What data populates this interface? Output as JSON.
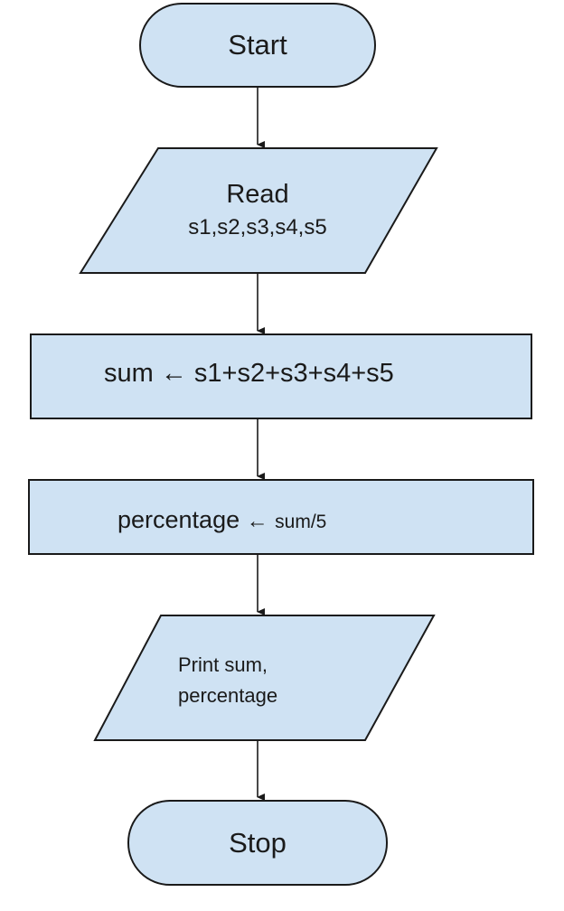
{
  "colors": {
    "fill": "#cfe2f3",
    "stroke": "#1a1a1a",
    "arrow": "#1a1a1a",
    "text": "#1a1a1a"
  },
  "nodes": {
    "start": {
      "shape": "terminator",
      "text": "Start"
    },
    "read": {
      "shape": "input-output",
      "line1": "Read",
      "line2": "s1,s2,s3,s4,s5"
    },
    "sum": {
      "shape": "process",
      "text_main": "sum",
      "arrow": "←",
      "text_expr": "s1+s2+s3+s4+s5"
    },
    "percentage": {
      "shape": "process",
      "text_main": "percentage",
      "arrow": "←",
      "text_expr": "sum/5"
    },
    "print": {
      "shape": "input-output",
      "line1": "Print sum,",
      "line2": "percentage"
    },
    "stop": {
      "shape": "terminator",
      "text": "Stop"
    }
  },
  "edges": [
    {
      "from": "start",
      "to": "read"
    },
    {
      "from": "read",
      "to": "sum"
    },
    {
      "from": "sum",
      "to": "percentage"
    },
    {
      "from": "percentage",
      "to": "print"
    },
    {
      "from": "print",
      "to": "stop"
    }
  ]
}
